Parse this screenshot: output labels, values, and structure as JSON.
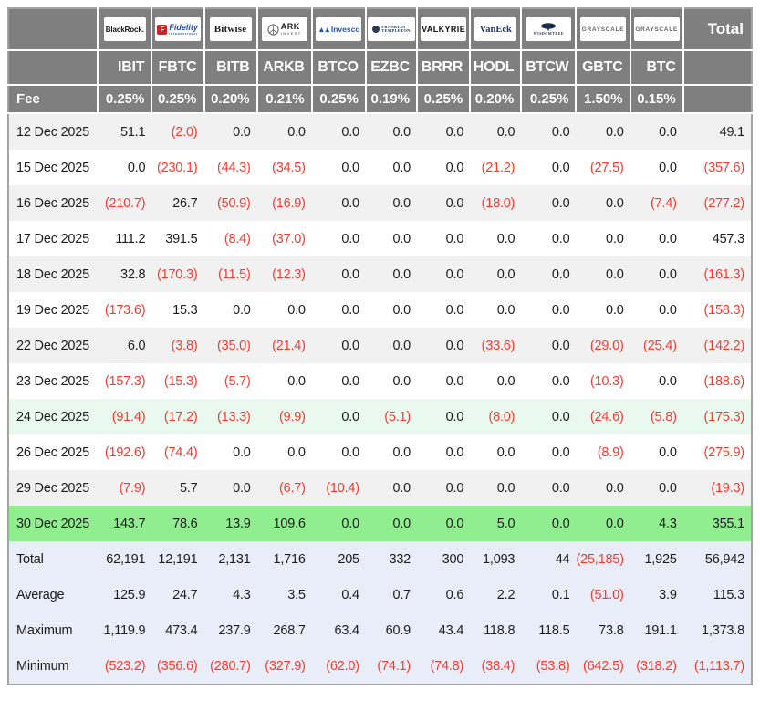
{
  "table": {
    "fee_label": "Fee",
    "total_label": "Total",
    "colors": {
      "header_gray": "#7f7f7f",
      "negative_red": "#fb392d",
      "stripe_gray": "#f1f1f2",
      "highlight_light_green": "#e9f9ef",
      "highlight_green": "#90ee90",
      "summary_blue": "#e9edf7",
      "fidelity_red": "#cf2128",
      "fidelity_blue": "#2b50a1",
      "invesco_blue": "#2458c5",
      "vaneck_navy": "#25355e"
    },
    "providers": [
      {
        "ticker": "IBIT",
        "fee": "0.25%",
        "logo": {
          "name": "BlackRock",
          "text": "BlackRock."
        }
      },
      {
        "ticker": "FBTC",
        "fee": "0.25%",
        "logo": {
          "name": "Fidelity",
          "badge": "F",
          "text": "Fidelity",
          "sub": "INTERNATIONAL"
        }
      },
      {
        "ticker": "BITB",
        "fee": "0.20%",
        "logo": {
          "name": "Bitwise",
          "text": "Bitwise"
        }
      },
      {
        "ticker": "ARKB",
        "fee": "0.21%",
        "logo": {
          "name": "ARK Invest",
          "text": "ARK",
          "sub": "INVEST"
        }
      },
      {
        "ticker": "BTCO",
        "fee": "0.25%",
        "logo": {
          "name": "Invesco",
          "text": "Invesco"
        }
      },
      {
        "ticker": "EZBC",
        "fee": "0.19%",
        "logo": {
          "name": "Franklin Templeton",
          "text": "FRANKLIN",
          "sub": "TEMPLETON"
        }
      },
      {
        "ticker": "BRRR",
        "fee": "0.25%",
        "logo": {
          "name": "Valkyrie",
          "text": "VALKYRIE"
        }
      },
      {
        "ticker": "HODL",
        "fee": "0.20%",
        "logo": {
          "name": "VanEck",
          "text": "VanEck"
        }
      },
      {
        "ticker": "BTCW",
        "fee": "0.25%",
        "logo": {
          "name": "WisdomTree",
          "text": "WISDOMTREE"
        }
      },
      {
        "ticker": "GBTC",
        "fee": "1.50%",
        "logo": {
          "name": "Grayscale",
          "text": "GRAYSCALE"
        }
      },
      {
        "ticker": "BTC",
        "fee": "0.15%",
        "logo": {
          "name": "Grayscale",
          "text": "GRAYSCALE"
        }
      }
    ],
    "rows": [
      {
        "date": "12 Dec 2025",
        "bg": "stripe",
        "values": [
          "51.1",
          "(2.0)",
          "0.0",
          "0.0",
          "0.0",
          "0.0",
          "0.0",
          "0.0",
          "0.0",
          "0.0",
          "0.0"
        ],
        "total": "49.1"
      },
      {
        "date": "15 Dec 2025",
        "bg": "plain",
        "values": [
          "0.0",
          "(230.1)",
          "(44.3)",
          "(34.5)",
          "0.0",
          "0.0",
          "0.0",
          "(21.2)",
          "0.0",
          "(27.5)",
          "0.0"
        ],
        "total": "(357.6)"
      },
      {
        "date": "16 Dec 2025",
        "bg": "stripe",
        "values": [
          "(210.7)",
          "26.7",
          "(50.9)",
          "(16.9)",
          "0.0",
          "0.0",
          "0.0",
          "(18.0)",
          "0.0",
          "0.0",
          "(7.4)"
        ],
        "total": "(277.2)"
      },
      {
        "date": "17 Dec 2025",
        "bg": "plain",
        "values": [
          "111.2",
          "391.5",
          "(8.4)",
          "(37.0)",
          "0.0",
          "0.0",
          "0.0",
          "0.0",
          "0.0",
          "0.0",
          "0.0"
        ],
        "total": "457.3"
      },
      {
        "date": "18 Dec 2025",
        "bg": "stripe",
        "values": [
          "32.8",
          "(170.3)",
          "(11.5)",
          "(12.3)",
          "0.0",
          "0.0",
          "0.0",
          "0.0",
          "0.0",
          "0.0",
          "0.0"
        ],
        "total": "(161.3)"
      },
      {
        "date": "19 Dec 2025",
        "bg": "plain",
        "values": [
          "(173.6)",
          "15.3",
          "0.0",
          "0.0",
          "0.0",
          "0.0",
          "0.0",
          "0.0",
          "0.0",
          "0.0",
          "0.0"
        ],
        "total": "(158.3)"
      },
      {
        "date": "22 Dec 2025",
        "bg": "stripe",
        "values": [
          "6.0",
          "(3.8)",
          "(35.0)",
          "(21.4)",
          "0.0",
          "0.0",
          "0.0",
          "(33.6)",
          "0.0",
          "(29.0)",
          "(25.4)"
        ],
        "total": "(142.2)"
      },
      {
        "date": "23 Dec 2025",
        "bg": "plain",
        "values": [
          "(157.3)",
          "(15.3)",
          "(5.7)",
          "0.0",
          "0.0",
          "0.0",
          "0.0",
          "0.0",
          "0.0",
          "(10.3)",
          "0.0"
        ],
        "total": "(188.6)"
      },
      {
        "date": "24 Dec 2025",
        "bg": "mint",
        "values": [
          "(91.4)",
          "(17.2)",
          "(13.3)",
          "(9.9)",
          "0.0",
          "(5.1)",
          "0.0",
          "(8.0)",
          "0.0",
          "(24.6)",
          "(5.8)"
        ],
        "total": "(175.3)"
      },
      {
        "date": "26 Dec 2025",
        "bg": "plain",
        "values": [
          "(192.6)",
          "(74.4)",
          "0.0",
          "0.0",
          "0.0",
          "0.0",
          "0.0",
          "0.0",
          "0.0",
          "(8.9)",
          "0.0"
        ],
        "total": "(275.9)"
      },
      {
        "date": "29 Dec 2025",
        "bg": "stripe",
        "values": [
          "(7.9)",
          "5.7",
          "0.0",
          "(6.7)",
          "(10.4)",
          "0.0",
          "0.0",
          "0.0",
          "0.0",
          "0.0",
          "0.0"
        ],
        "total": "(19.3)"
      },
      {
        "date": "30 Dec 2025",
        "bg": "green",
        "values": [
          "143.7",
          "78.6",
          "13.9",
          "109.6",
          "0.0",
          "0.0",
          "0.0",
          "5.0",
          "0.0",
          "0.0",
          "4.3"
        ],
        "total": "355.1"
      }
    ],
    "summary": [
      {
        "label": "Total",
        "values": [
          "62,191",
          "12,191",
          "2,131",
          "1,716",
          "205",
          "332",
          "300",
          "1,093",
          "44",
          "(25,185)",
          "1,925"
        ],
        "total": "56,942"
      },
      {
        "label": "Average",
        "values": [
          "125.9",
          "24.7",
          "4.3",
          "3.5",
          "0.4",
          "0.7",
          "0.6",
          "2.2",
          "0.1",
          "(51.0)",
          "3.9"
        ],
        "total": "115.3"
      },
      {
        "label": "Maximum",
        "values": [
          "1,119.9",
          "473.4",
          "237.9",
          "268.7",
          "63.4",
          "60.9",
          "43.4",
          "118.8",
          "118.5",
          "73.8",
          "191.1"
        ],
        "total": "1,373.8"
      },
      {
        "label": "Minimum",
        "values": [
          "(523.2)",
          "(356.6)",
          "(280.7)",
          "(327.9)",
          "(62.0)",
          "(74.1)",
          "(74.8)",
          "(38.4)",
          "(53.8)",
          "(642.5)",
          "(318.2)"
        ],
        "total": "(1,113.7)"
      }
    ]
  }
}
